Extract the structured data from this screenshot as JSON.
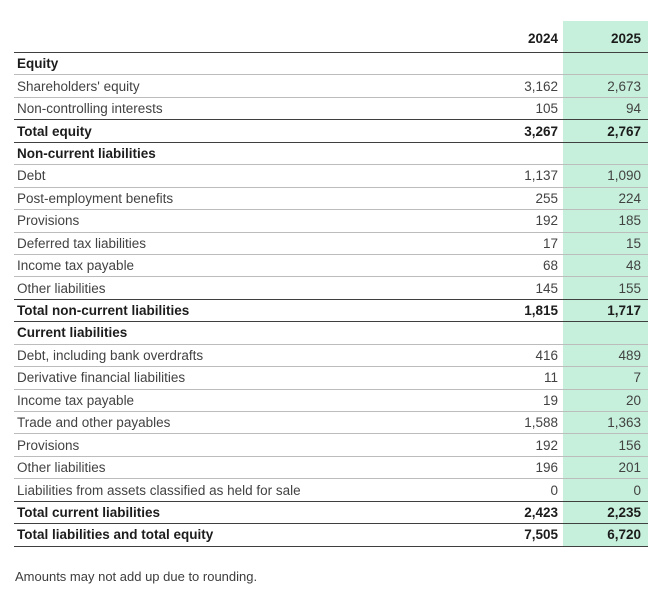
{
  "table": {
    "columns": [
      "2024",
      "2025"
    ],
    "rows": [
      {
        "label": "Equity",
        "v2024": "",
        "v2025": "",
        "style": "section"
      },
      {
        "label": "Shareholders' equity",
        "v2024": "3,162",
        "v2025": "2,673",
        "style": "normal"
      },
      {
        "label": "Non-controlling interests",
        "v2024": "105",
        "v2025": "94",
        "style": "normal"
      },
      {
        "label": "Total equity",
        "v2024": "3,267",
        "v2025": "2,767",
        "style": "total"
      },
      {
        "label": "Non-current liabilities",
        "v2024": "",
        "v2025": "",
        "style": "section"
      },
      {
        "label": "Debt",
        "v2024": "1,137",
        "v2025": "1,090",
        "style": "normal"
      },
      {
        "label": "Post-employment benefits",
        "v2024": "255",
        "v2025": "224",
        "style": "normal"
      },
      {
        "label": "Provisions",
        "v2024": "192",
        "v2025": "185",
        "style": "normal"
      },
      {
        "label": "Deferred tax liabilities",
        "v2024": "17",
        "v2025": "15",
        "style": "normal"
      },
      {
        "label": "Income tax payable",
        "v2024": "68",
        "v2025": "48",
        "style": "normal"
      },
      {
        "label": "Other liabilities",
        "v2024": "145",
        "v2025": "155",
        "style": "normal"
      },
      {
        "label": "Total non-current liabilities",
        "v2024": "1,815",
        "v2025": "1,717",
        "style": "total"
      },
      {
        "label": "Current liabilities",
        "v2024": "",
        "v2025": "",
        "style": "section"
      },
      {
        "label": "Debt, including bank overdrafts",
        "v2024": "416",
        "v2025": "489",
        "style": "normal"
      },
      {
        "label": "Derivative financial liabilities",
        "v2024": "11",
        "v2025": "7",
        "style": "normal"
      },
      {
        "label": "Income tax payable",
        "v2024": "19",
        "v2025": "20",
        "style": "normal"
      },
      {
        "label": "Trade and other payables",
        "v2024": "1,588",
        "v2025": "1,363",
        "style": "normal"
      },
      {
        "label": "Provisions",
        "v2024": "192",
        "v2025": "156",
        "style": "normal"
      },
      {
        "label": "Other liabilities",
        "v2024": "196",
        "v2025": "201",
        "style": "normal"
      },
      {
        "label": "Liabilities from assets classified as held for sale",
        "v2024": "0",
        "v2025": "0",
        "style": "normal"
      },
      {
        "label": "Total current liabilities",
        "v2024": "2,423",
        "v2025": "2,235",
        "style": "total"
      },
      {
        "label": "Total liabilities and total equity",
        "v2024": "7,505",
        "v2025": "6,720",
        "style": "total"
      }
    ]
  },
  "footnote": "Amounts may not add up due to rounding.",
  "colors": {
    "highlight_column": "#c6f0dc",
    "dark_rule": "#3f3f3f",
    "thin_rule": "#bcbcbc"
  }
}
